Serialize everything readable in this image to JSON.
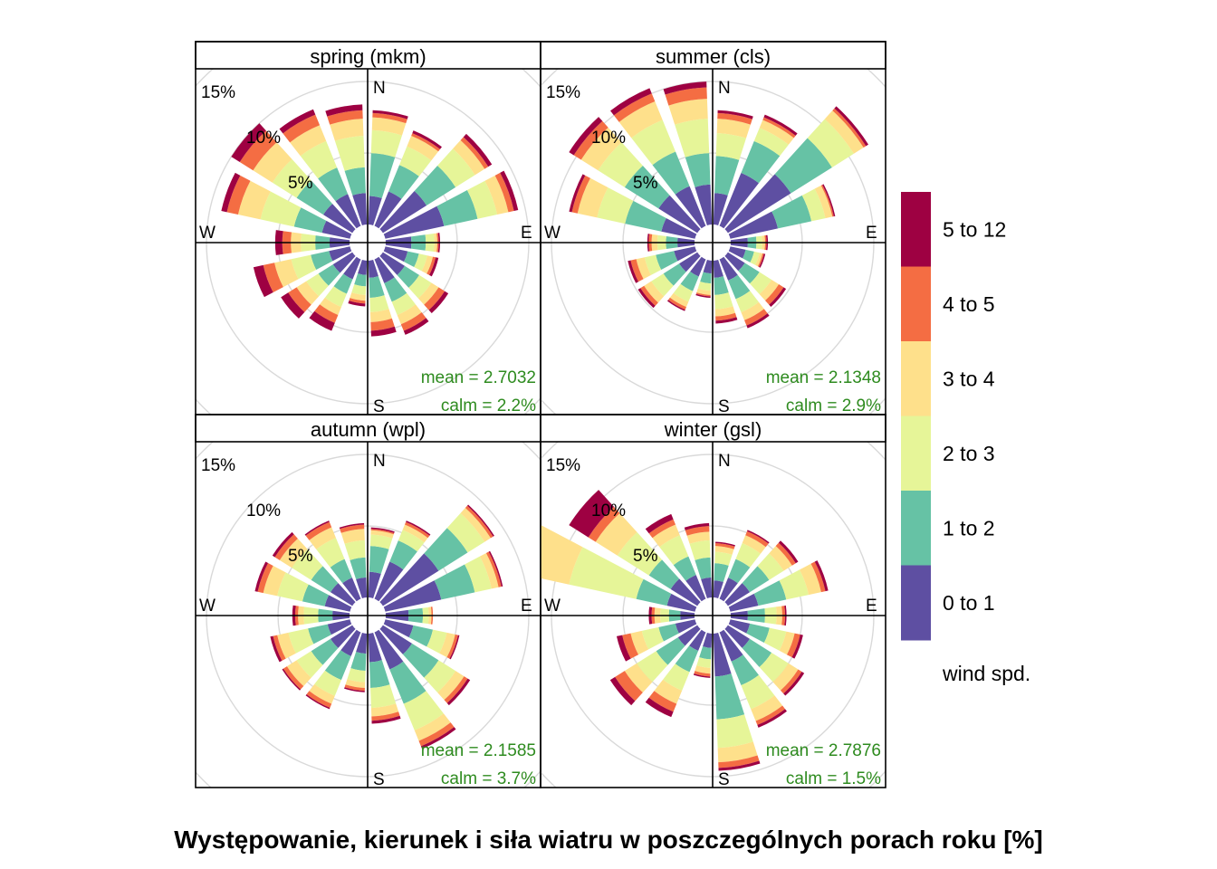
{
  "caption": "Występowanie, kierunek i siła wiatru w poszczególnych porach roku [%]",
  "chart_data": {
    "type": "windrose",
    "compass_labels": {
      "N": "N",
      "E": "E",
      "S": "S",
      "W": "W"
    },
    "ring_values": [
      5,
      10,
      15
    ],
    "ring_labels": [
      "5%",
      "10%",
      "15%"
    ],
    "grid": true,
    "legend": {
      "title": "wind spd.",
      "position": "right",
      "bins": [
        "0 to 1",
        "1 to 2",
        "2 to 3",
        "3 to 4",
        "4 to 5",
        "5 to 12"
      ],
      "colors": [
        "#5e4fa2",
        "#66c2a5",
        "#e6f598",
        "#fee08b",
        "#f46d43",
        "#9e0142"
      ]
    },
    "directions_deg": [
      10,
      30,
      50,
      70,
      90,
      110,
      130,
      150,
      170,
      190,
      210,
      230,
      250,
      270,
      290,
      310,
      330,
      350
    ],
    "panels": [
      {
        "title": "spring (mkm)",
        "mean": "mean = 2.7032",
        "calm": "calm = 2.2%",
        "cumulative": [
          [
            2.0,
            5.0,
            6.6,
            7.5,
            7.8,
            8.0
          ],
          [
            2.6,
            4.6,
            6.0,
            6.8,
            7.0,
            7.2
          ],
          [
            3.6,
            6.0,
            7.6,
            8.4,
            8.7,
            9.0
          ],
          [
            4.2,
            6.6,
            8.0,
            8.8,
            9.2,
            9.5
          ],
          [
            1.8,
            2.8,
            3.4,
            3.6,
            3.7,
            3.8
          ],
          [
            1.6,
            2.4,
            3.0,
            3.4,
            3.6,
            3.8
          ],
          [
            1.8,
            3.0,
            4.0,
            4.6,
            5.1,
            5.4
          ],
          [
            1.8,
            3.2,
            4.2,
            4.9,
            5.4,
            5.7
          ],
          [
            1.2,
            2.6,
            3.6,
            4.3,
            4.9,
            5.3
          ],
          [
            1.0,
            1.8,
            2.4,
            2.8,
            3.0,
            3.2
          ],
          [
            1.5,
            2.6,
            3.6,
            4.2,
            4.8,
            5.4
          ],
          [
            1.6,
            2.8,
            3.8,
            4.6,
            5.3,
            5.9
          ],
          [
            1.5,
            2.8,
            4.2,
            5.4,
            6.2,
            6.9
          ],
          [
            1.4,
            2.4,
            3.4,
            4.1,
            4.7,
            5.2
          ],
          [
            2.0,
            4.0,
            6.4,
            8.0,
            8.8,
            9.2
          ],
          [
            2.4,
            4.6,
            6.6,
            8.2,
            9.3,
            10.0
          ],
          [
            2.4,
            4.4,
            6.4,
            7.6,
            8.4,
            8.8
          ],
          [
            2.2,
            4.0,
            6.2,
            7.4,
            8.0,
            8.4
          ]
        ]
      },
      {
        "title": "summer (cls)",
        "mean": "mean = 2.1348",
        "calm": "calm = 2.9%",
        "cumulative": [
          [
            2.2,
            4.8,
            6.4,
            7.4,
            7.8,
            8.0
          ],
          [
            4.0,
            6.4,
            7.4,
            8.0,
            8.2,
            8.4
          ],
          [
            5.2,
            8.6,
            10.4,
            11.2,
            11.4,
            11.6
          ],
          [
            3.4,
            5.8,
            6.8,
            7.3,
            7.4,
            7.5
          ],
          [
            1.2,
            1.8,
            2.2,
            2.4,
            2.5,
            2.6
          ],
          [
            1.1,
            1.7,
            2.1,
            2.3,
            2.4,
            2.5
          ],
          [
            1.4,
            2.6,
            3.6,
            4.2,
            4.6,
            4.8
          ],
          [
            1.6,
            3.0,
            4.0,
            4.6,
            5.0,
            5.2
          ],
          [
            1.2,
            2.4,
            3.4,
            3.9,
            4.2,
            4.4
          ],
          [
            0.9,
            1.6,
            2.1,
            2.4,
            2.5,
            2.6
          ],
          [
            1.3,
            2.4,
            3.2,
            3.6,
            3.8,
            3.9
          ],
          [
            1.5,
            2.8,
            3.8,
            4.4,
            4.7,
            4.9
          ],
          [
            1.5,
            2.8,
            3.6,
            4.2,
            4.6,
            4.8
          ],
          [
            1.2,
            2.0,
            2.6,
            3.0,
            3.2,
            3.3
          ],
          [
            2.4,
            5.0,
            7.0,
            8.4,
            8.8,
            9.0
          ],
          [
            3.2,
            6.0,
            8.2,
            9.6,
            10.2,
            10.6
          ],
          [
            3.0,
            5.6,
            8.0,
            9.4,
            10.0,
            10.4
          ],
          [
            2.8,
            5.0,
            7.4,
            8.8,
            9.6,
            10.0
          ]
        ]
      },
      {
        "title": "autumn (wpl)",
        "mean": "mean = 2.1585",
        "calm": "calm = 3.7%",
        "cumulative": [
          [
            1.8,
            3.6,
            4.4,
            4.7,
            4.8,
            4.9
          ],
          [
            2.8,
            4.4,
            5.2,
            5.6,
            5.8,
            5.9
          ],
          [
            4.6,
            7.0,
            8.4,
            8.9,
            9.1,
            9.2
          ],
          [
            4.0,
            6.4,
            7.6,
            8.1,
            8.3,
            8.4
          ],
          [
            1.6,
            2.6,
            3.0,
            3.2,
            3.3,
            3.3
          ],
          [
            2.0,
            3.4,
            4.4,
            5.0,
            5.2,
            5.3
          ],
          [
            2.4,
            4.6,
            6.0,
            6.7,
            7.0,
            7.2
          ],
          [
            2.8,
            5.4,
            7.4,
            8.2,
            8.6,
            8.8
          ],
          [
            2.0,
            3.8,
            5.2,
            5.8,
            6.1,
            6.3
          ],
          [
            1.4,
            2.6,
            3.4,
            3.8,
            4.0,
            4.1
          ],
          [
            1.8,
            3.6,
            4.8,
            5.4,
            5.7,
            5.8
          ],
          [
            1.8,
            3.4,
            4.6,
            5.4,
            5.7,
            5.8
          ],
          [
            1.6,
            3.0,
            4.4,
            5.2,
            5.5,
            5.7
          ],
          [
            1.2,
            2.2,
            3.2,
            3.6,
            3.8,
            4.0
          ],
          [
            1.8,
            3.4,
            5.2,
            6.2,
            6.6,
            6.8
          ],
          [
            1.8,
            3.4,
            5.0,
            6.0,
            6.4,
            6.6
          ],
          [
            1.6,
            3.0,
            4.6,
            5.4,
            5.8,
            5.9
          ],
          [
            1.4,
            2.8,
            4.0,
            4.8,
            5.1,
            5.2
          ]
        ]
      },
      {
        "title": "winter (gsl)",
        "mean": "mean = 2.7876",
        "calm": "calm = 1.5%",
        "cumulative": [
          [
            1.2,
            2.4,
            3.2,
            3.6,
            3.8,
            3.9
          ],
          [
            1.6,
            3.0,
            4.2,
            4.8,
            5.1,
            5.2
          ],
          [
            1.8,
            3.4,
            4.6,
            5.3,
            5.6,
            5.8
          ],
          [
            2.0,
            4.0,
            5.6,
            6.5,
            6.8,
            7.0
          ],
          [
            1.2,
            2.4,
            3.2,
            3.6,
            3.8,
            3.9
          ],
          [
            1.4,
            2.8,
            4.0,
            4.6,
            5.0,
            5.2
          ],
          [
            1.8,
            3.6,
            5.0,
            5.8,
            6.1,
            6.3
          ],
          [
            2.2,
            4.0,
            5.8,
            6.7,
            7.0,
            7.2
          ],
          [
            3.0,
            6.0,
            8.0,
            9.0,
            9.4,
            9.6
          ],
          [
            1.0,
            1.8,
            2.4,
            2.8,
            3.0,
            3.1
          ],
          [
            1.4,
            3.0,
            4.4,
            5.4,
            6.0,
            6.4
          ],
          [
            1.6,
            3.4,
            5.0,
            6.0,
            6.8,
            7.2
          ],
          [
            1.4,
            2.6,
            3.8,
            4.6,
            5.2,
            5.6
          ],
          [
            1.0,
            1.8,
            2.4,
            2.8,
            3.0,
            3.2
          ],
          [
            2.0,
            4.2,
            9.0,
            14.2,
            15.4,
            16.0
          ],
          [
            2.2,
            4.0,
            6.6,
            8.4,
            9.0,
            10.6
          ],
          [
            1.8,
            3.2,
            4.8,
            5.6,
            6.0,
            6.4
          ],
          [
            1.4,
            2.8,
            4.0,
            4.6,
            5.0,
            5.2
          ]
        ]
      }
    ]
  }
}
